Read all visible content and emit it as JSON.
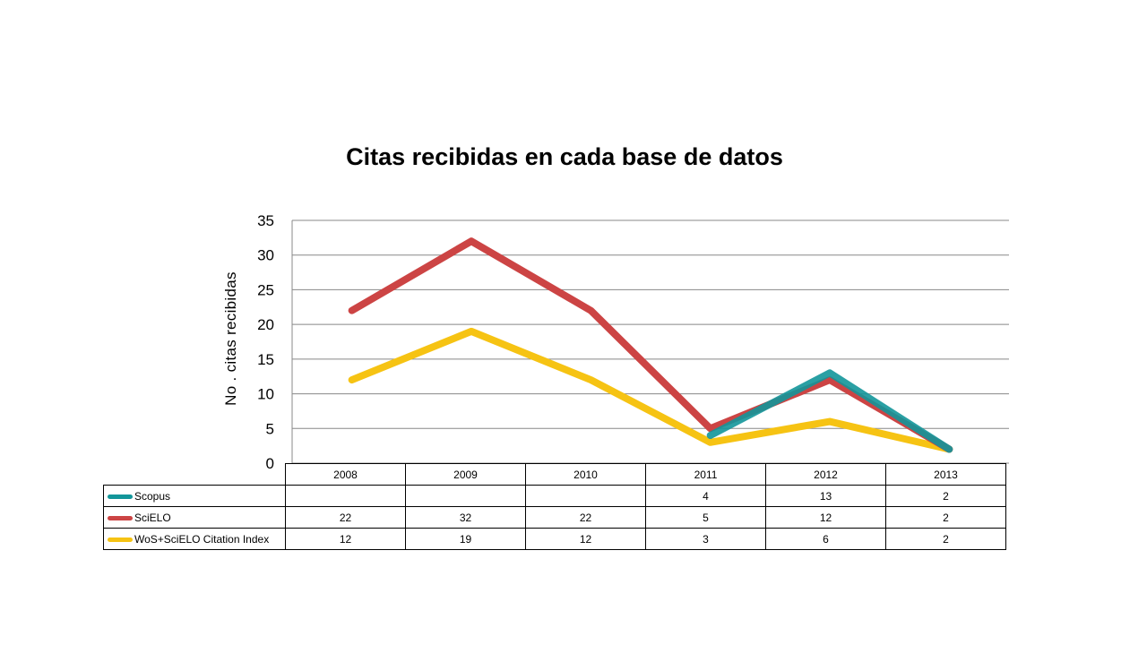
{
  "chart_data": {
    "type": "line",
    "title": "Citas recibidas en cada base de datos",
    "ylabel": "No .   citas recibidas",
    "xlabel": "",
    "ylim": [
      0,
      35
    ],
    "yticks": [
      "0",
      "5",
      "10",
      "15",
      "20",
      "25",
      "30",
      "35"
    ],
    "categories": [
      "2008",
      "2009",
      "2010",
      "2011",
      "2012",
      "2013"
    ],
    "grid": true,
    "legend": "data-table",
    "series": [
      {
        "name": "Scopus",
        "color": "#13969a",
        "values": [
          null,
          null,
          null,
          4,
          13,
          2
        ],
        "labels": [
          "",
          "",
          "",
          "4",
          "13",
          "2"
        ]
      },
      {
        "name": "SciELO",
        "color": "#cc4444",
        "values": [
          22,
          32,
          22,
          5,
          12,
          2
        ],
        "labels": [
          "22",
          "32",
          "22",
          "5",
          "12",
          "2"
        ]
      },
      {
        "name": "WoS+SciELO Citation Index",
        "color": "#f6c313",
        "values": [
          12,
          19,
          12,
          3,
          6,
          2
        ],
        "labels": [
          "12",
          "19",
          "12",
          "3",
          "6",
          "2"
        ]
      }
    ]
  }
}
